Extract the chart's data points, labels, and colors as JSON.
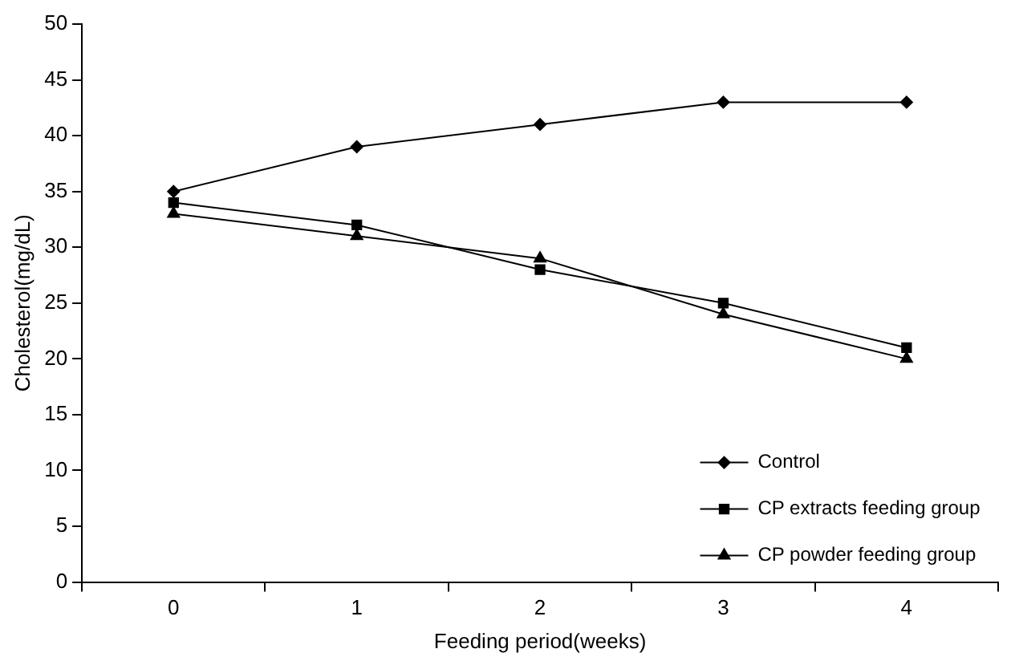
{
  "chart_data": {
    "type": "line",
    "xlabel": "Feeding period(weeks)",
    "ylabel": "Cholesterol(mg/dL)",
    "categories": [
      "0",
      "1",
      "2",
      "3",
      "4"
    ],
    "series": [
      {
        "name": "Control",
        "color": "#000000",
        "marker": "diamond",
        "values": [
          35,
          39,
          41,
          43,
          43
        ]
      },
      {
        "name": "CP extracts feeding group",
        "color": "#000000",
        "marker": "square",
        "values": [
          34,
          32,
          28,
          25,
          21
        ]
      },
      {
        "name": "CP powder feeding group",
        "color": "#000000",
        "marker": "triangle",
        "values": [
          33,
          31,
          29,
          24,
          20
        ]
      }
    ],
    "ylim": [
      0,
      50
    ],
    "yticks": [
      0,
      5,
      10,
      15,
      20,
      25,
      30,
      35,
      40,
      45,
      50
    ],
    "grid": false,
    "legend": "bottom right",
    "line_style": "solid"
  }
}
